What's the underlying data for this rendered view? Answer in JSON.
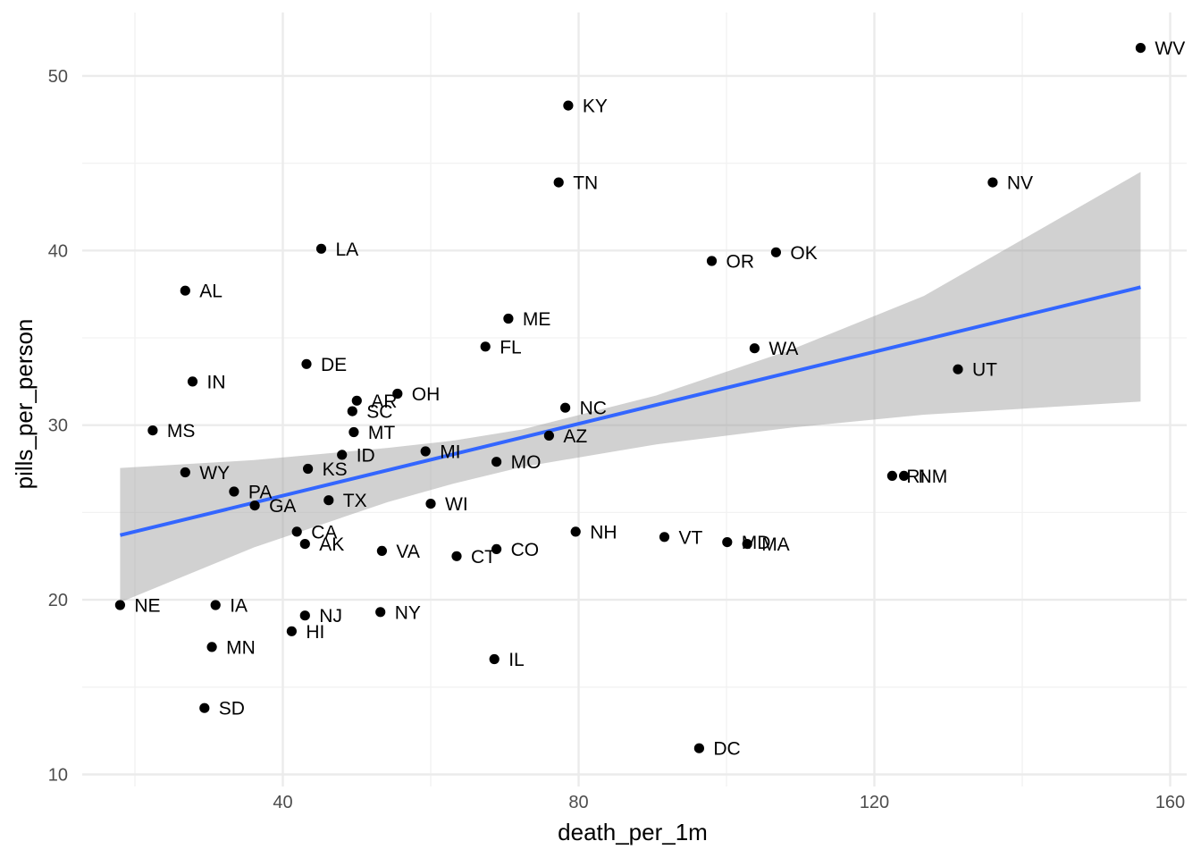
{
  "chart_data": {
    "type": "scatter",
    "title": "",
    "xlabel": "death_per_1m",
    "ylabel": "pills_per_person",
    "xlim": [
      12,
      162
    ],
    "ylim": [
      9.5,
      53.5
    ],
    "x_ticks": [
      40,
      80,
      120,
      160
    ],
    "y_ticks": [
      10,
      20,
      30,
      40,
      50
    ],
    "grid": true,
    "legend": "none",
    "colors": {
      "point": "#000000",
      "fit_line": "#3366FF",
      "ribbon": "#999999",
      "grid_major": "#ebebeb",
      "grid_minor": "#f2f2f2"
    },
    "fit": {
      "method": "linear",
      "x_range": [
        18.0,
        156.0
      ],
      "y_range": [
        23.7,
        37.9
      ],
      "band_lower": [
        [
          18.0,
          19.85
        ],
        [
          36.1,
          23.0
        ],
        [
          54.2,
          25.6
        ],
        [
          62.8,
          26.62
        ],
        [
          72.3,
          27.6
        ],
        [
          90.5,
          28.9
        ],
        [
          108.6,
          29.85
        ],
        [
          126.7,
          30.6
        ],
        [
          156.0,
          31.35
        ]
      ],
      "band_upper": [
        [
          18.0,
          27.55
        ],
        [
          36.1,
          28.0
        ],
        [
          54.2,
          28.7
        ],
        [
          62.8,
          29.1
        ],
        [
          72.3,
          29.75
        ],
        [
          90.5,
          31.7
        ],
        [
          108.6,
          34.3
        ],
        [
          126.7,
          37.4
        ],
        [
          156.0,
          44.5
        ]
      ]
    },
    "points": [
      {
        "state": "WV",
        "x": 156.0,
        "y": 51.6
      },
      {
        "state": "KY",
        "x": 78.6,
        "y": 48.3
      },
      {
        "state": "TN",
        "x": 77.3,
        "y": 43.9
      },
      {
        "state": "NV",
        "x": 136.0,
        "y": 43.9
      },
      {
        "state": "LA",
        "x": 45.2,
        "y": 40.1
      },
      {
        "state": "OK",
        "x": 106.7,
        "y": 39.9
      },
      {
        "state": "OR",
        "x": 98.0,
        "y": 39.4
      },
      {
        "state": "AL",
        "x": 26.8,
        "y": 37.7
      },
      {
        "state": "ME",
        "x": 70.5,
        "y": 36.1
      },
      {
        "state": "FL",
        "x": 67.4,
        "y": 34.5
      },
      {
        "state": "WA",
        "x": 103.8,
        "y": 34.4
      },
      {
        "state": "DE",
        "x": 43.2,
        "y": 33.5
      },
      {
        "state": "UT",
        "x": 131.3,
        "y": 33.2
      },
      {
        "state": "IN",
        "x": 27.8,
        "y": 32.5
      },
      {
        "state": "OH",
        "x": 55.5,
        "y": 31.8
      },
      {
        "state": "AR",
        "x": 50.0,
        "y": 31.4
      },
      {
        "state": "NC",
        "x": 78.2,
        "y": 31.0
      },
      {
        "state": "SC",
        "x": 49.4,
        "y": 30.8
      },
      {
        "state": "MS",
        "x": 22.4,
        "y": 29.7
      },
      {
        "state": "MT",
        "x": 49.6,
        "y": 29.6
      },
      {
        "state": "AZ",
        "x": 76.0,
        "y": 29.4
      },
      {
        "state": "MI",
        "x": 59.3,
        "y": 28.5
      },
      {
        "state": "ID",
        "x": 48.0,
        "y": 28.3
      },
      {
        "state": "MO",
        "x": 68.9,
        "y": 27.9
      },
      {
        "state": "KS",
        "x": 43.4,
        "y": 27.5
      },
      {
        "state": "WY",
        "x": 26.8,
        "y": 27.3
      },
      {
        "state": "RI",
        "x": 122.4,
        "y": 27.1
      },
      {
        "state": "NM",
        "x": 124.0,
        "y": 27.1
      },
      {
        "state": "PA",
        "x": 33.4,
        "y": 26.2
      },
      {
        "state": "TX",
        "x": 46.2,
        "y": 25.7
      },
      {
        "state": "WI",
        "x": 60.0,
        "y": 25.5
      },
      {
        "state": "GA",
        "x": 36.2,
        "y": 25.4
      },
      {
        "state": "CA",
        "x": 41.9,
        "y": 23.9
      },
      {
        "state": "NH",
        "x": 79.6,
        "y": 23.9
      },
      {
        "state": "VT",
        "x": 91.6,
        "y": 23.6
      },
      {
        "state": "MD",
        "x": 100.1,
        "y": 23.3
      },
      {
        "state": "AK",
        "x": 43.0,
        "y": 23.2
      },
      {
        "state": "MA",
        "x": 102.8,
        "y": 23.2
      },
      {
        "state": "CO",
        "x": 68.9,
        "y": 22.9
      },
      {
        "state": "VA",
        "x": 53.4,
        "y": 22.8
      },
      {
        "state": "CT",
        "x": 63.5,
        "y": 22.5
      },
      {
        "state": "NE",
        "x": 18.0,
        "y": 19.7
      },
      {
        "state": "IA",
        "x": 30.9,
        "y": 19.7
      },
      {
        "state": "NY",
        "x": 53.2,
        "y": 19.3
      },
      {
        "state": "NJ",
        "x": 43.0,
        "y": 19.1
      },
      {
        "state": "HI",
        "x": 41.2,
        "y": 18.2
      },
      {
        "state": "MN",
        "x": 30.4,
        "y": 17.3
      },
      {
        "state": "IL",
        "x": 68.6,
        "y": 16.6
      },
      {
        "state": "SD",
        "x": 29.4,
        "y": 13.8
      },
      {
        "state": "DC",
        "x": 96.3,
        "y": 11.5
      }
    ]
  }
}
